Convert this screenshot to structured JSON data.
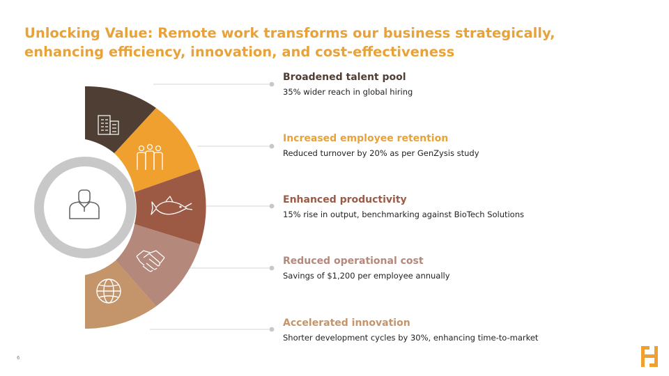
{
  "slide": {
    "title_line1": "Unlocking Value: Remote work transforms our business strategically,",
    "title_line2": "enhancing efficiency, innovation, and cost-effectiveness",
    "page_number": "6"
  },
  "colors": {
    "title": "#E8A23A",
    "segments": [
      "#4F3E33",
      "#EFA02F",
      "#9C5A45",
      "#B4887A",
      "#C4956A"
    ],
    "ring": "#C8C8C8",
    "connector": "#C8C8C8"
  },
  "center": {
    "icon": "person-icon"
  },
  "items": [
    {
      "title": "Broadened talent pool",
      "description": "35% wider reach in global hiring",
      "color": "#4F3E33",
      "icon": "office-building-icon"
    },
    {
      "title": "Increased employee retention",
      "description": "Reduced turnover by 20% as per GenZysis study",
      "color": "#E8A23A",
      "icon": "team-icon"
    },
    {
      "title": "Enhanced productivity",
      "description": "15% rise in output, benchmarking against BioTech Solutions",
      "color": "#9C5A45",
      "icon": "fish-icon"
    },
    {
      "title": "Reduced operational cost",
      "description": "Savings of $1,200 per employee annually",
      "color": "#B4887A",
      "icon": "handshake-icon"
    },
    {
      "title": "Accelerated innovation",
      "description": "Shorter development cycles by 30%, enhancing time-to-market",
      "color": "#C4956A",
      "icon": "globe-icon"
    }
  ]
}
